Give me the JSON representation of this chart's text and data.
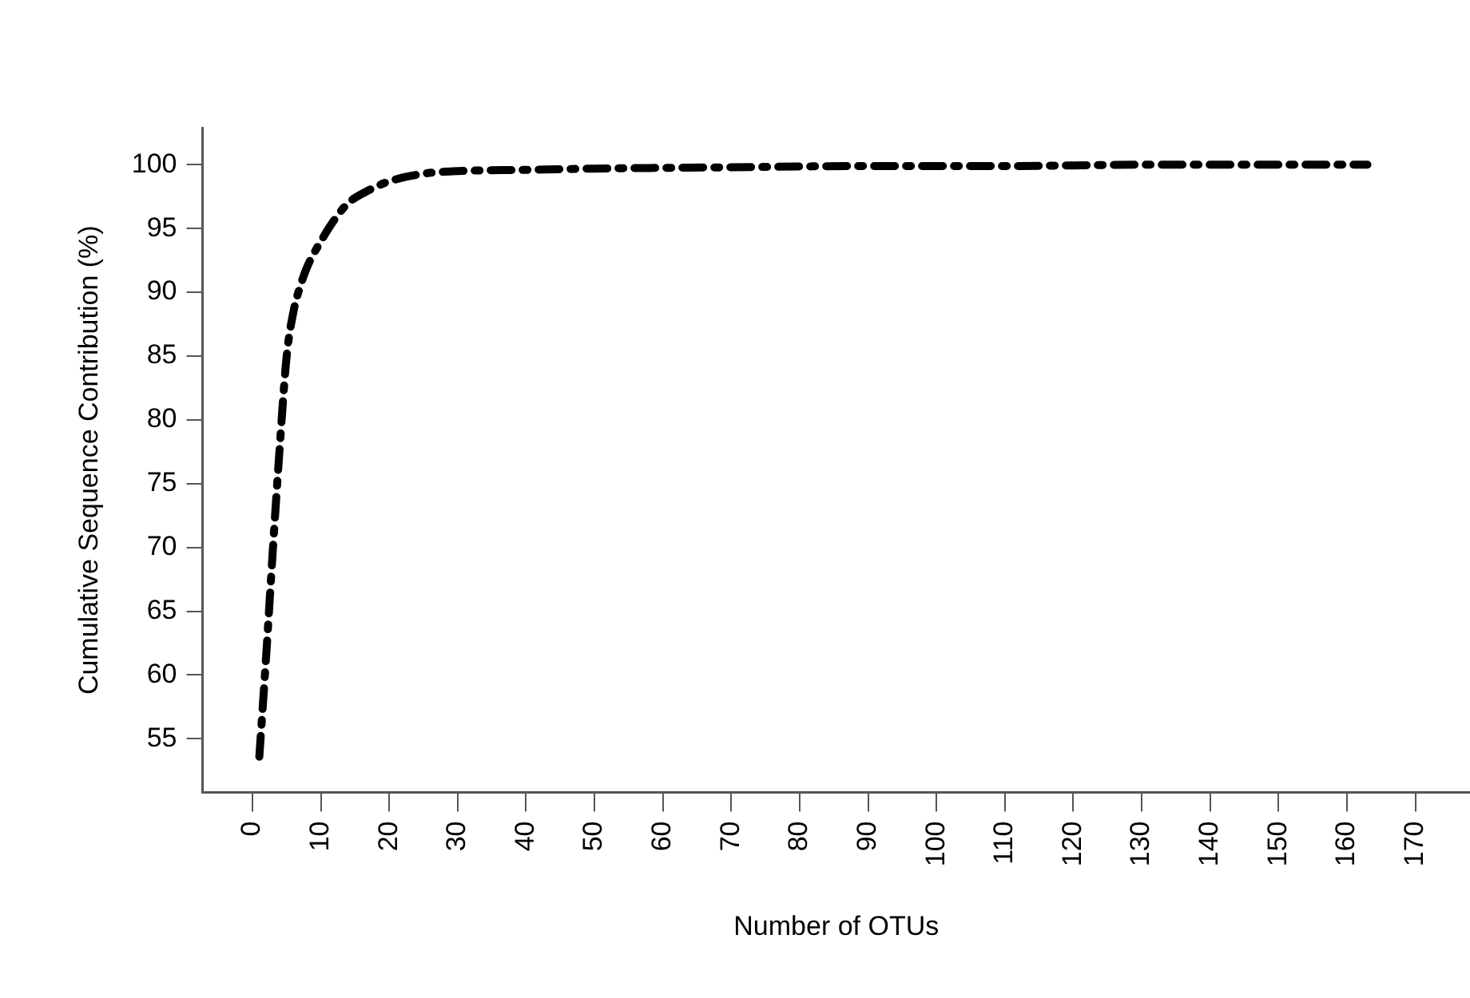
{
  "chart_data": {
    "type": "line",
    "xlabel": "Number of OTUs",
    "ylabel": "Cumulative Sequence Contribution (%)",
    "x": [
      1,
      2,
      3,
      4,
      5,
      6,
      7,
      8,
      10,
      12,
      14,
      17,
      20,
      25,
      30,
      40,
      50,
      70,
      90,
      110,
      130,
      150,
      163
    ],
    "series": [
      {
        "color": "#000000",
        "values": [
          53.6,
          61.5,
          70,
          78,
          85,
          88.5,
          90.5,
          92,
          94,
          95.7,
          97,
          98,
          98.7,
          99.3,
          99.5,
          99.6,
          99.7,
          99.8,
          99.9,
          99.9,
          100,
          100,
          100
        ]
      }
    ],
    "xlim": [
      -7.3,
      178
    ],
    "ylim": [
      50.8,
      102.9
    ],
    "xticks": [
      0,
      10,
      20,
      30,
      40,
      50,
      60,
      70,
      80,
      90,
      100,
      110,
      120,
      130,
      140,
      150,
      160,
      170
    ],
    "yticks": [
      55,
      60,
      65,
      70,
      75,
      80,
      85,
      90,
      95,
      100
    ],
    "grid": false,
    "legend": false,
    "marker": "none",
    "line_style": "dashed"
  }
}
